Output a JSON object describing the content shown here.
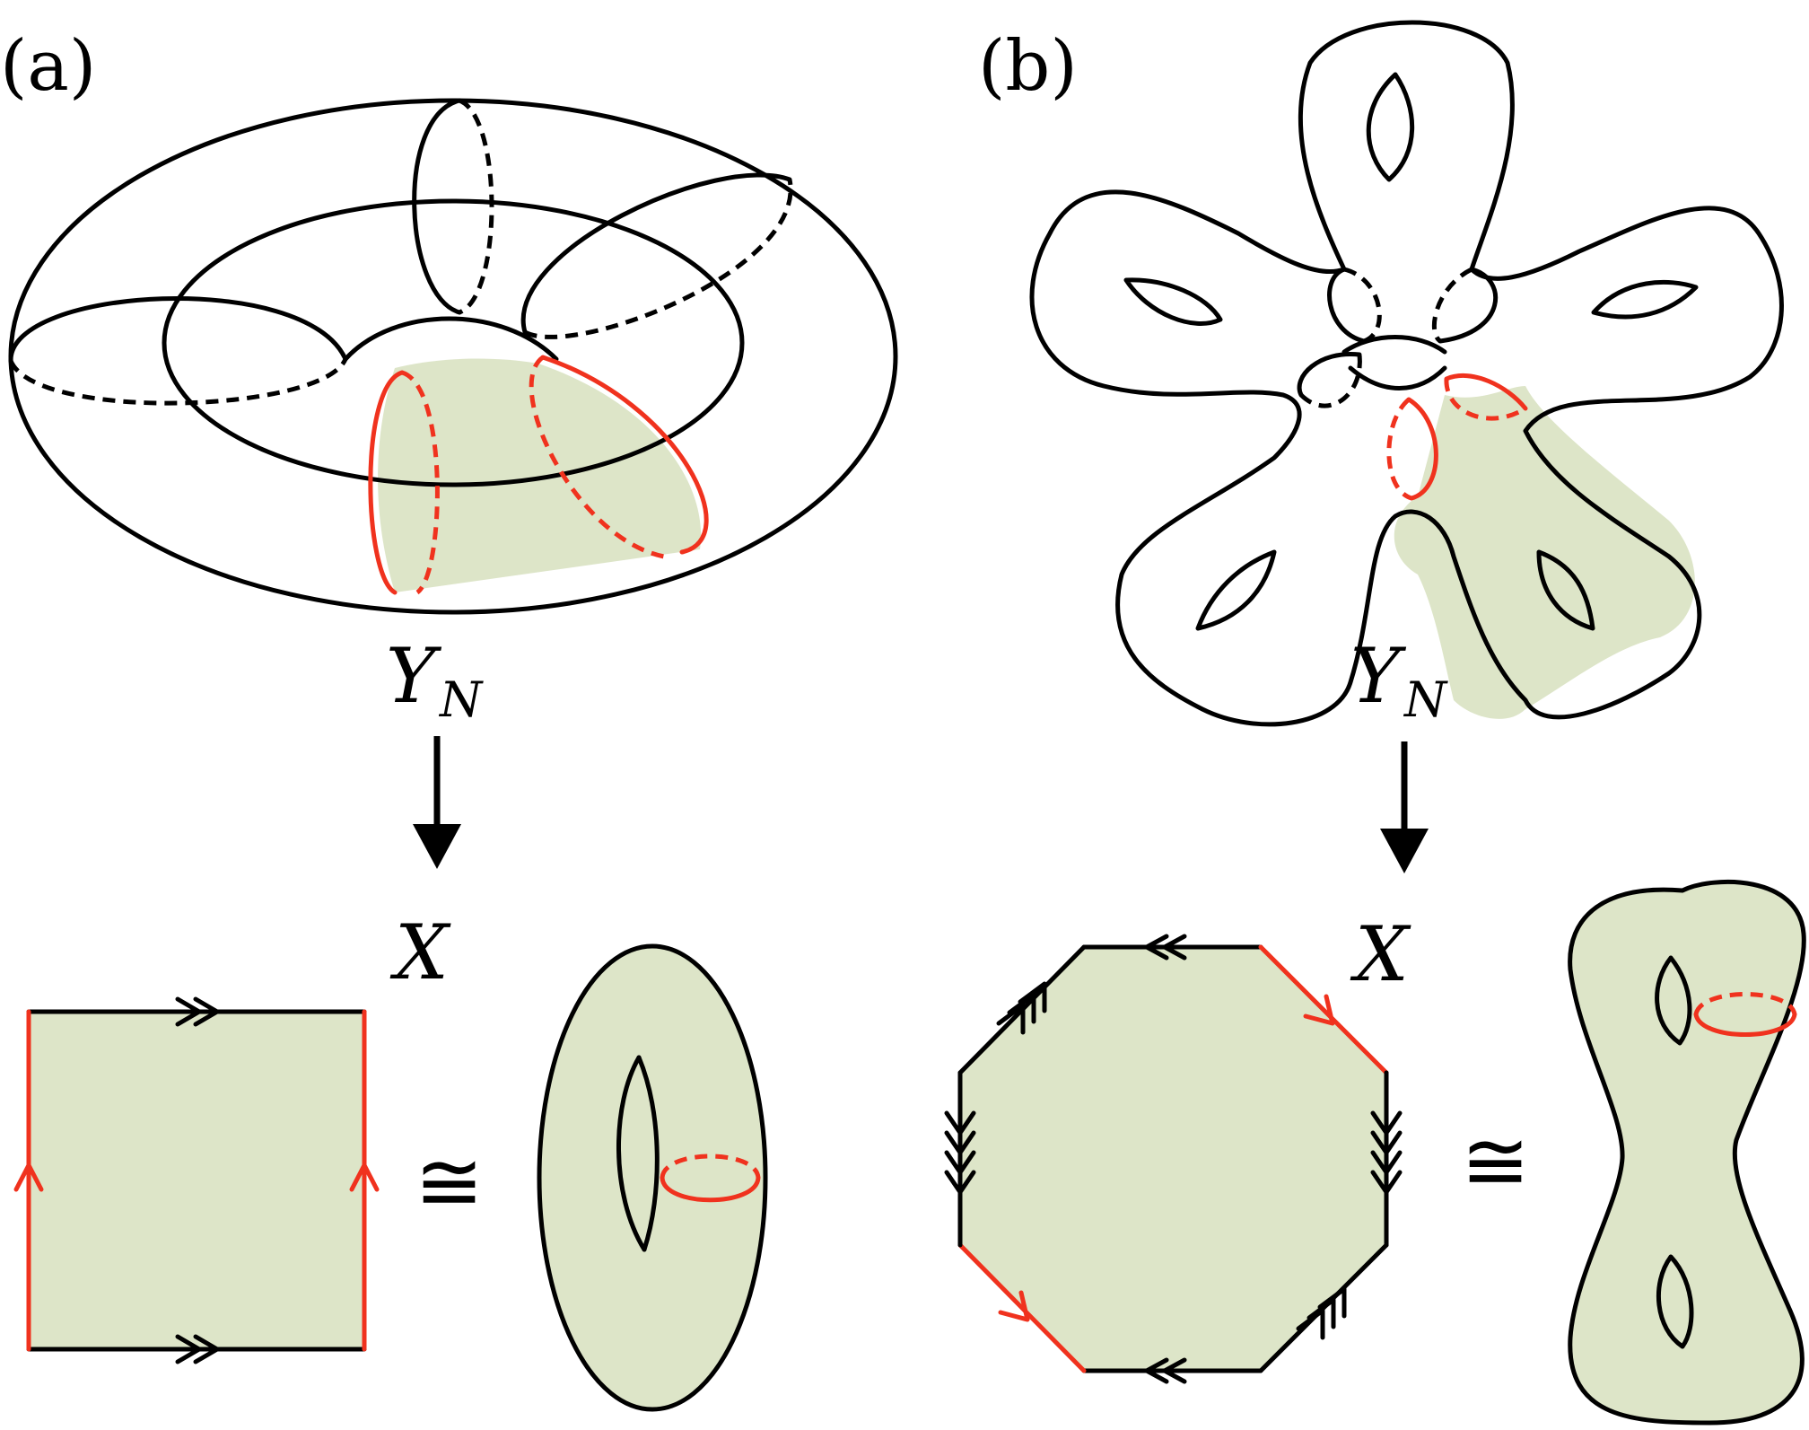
{
  "panels": [
    {
      "label": "(a)",
      "top_space": "Y",
      "top_space_sub": "N",
      "bottom_space": "X",
      "relation": "≅"
    },
    {
      "label": "(b)",
      "top_space": "Y",
      "top_space_sub": "N",
      "bottom_space": "X",
      "relation": "≅"
    }
  ],
  "colors": {
    "stroke": "#000000",
    "highlight": "#f0321e",
    "fill": "#dde5c8"
  }
}
